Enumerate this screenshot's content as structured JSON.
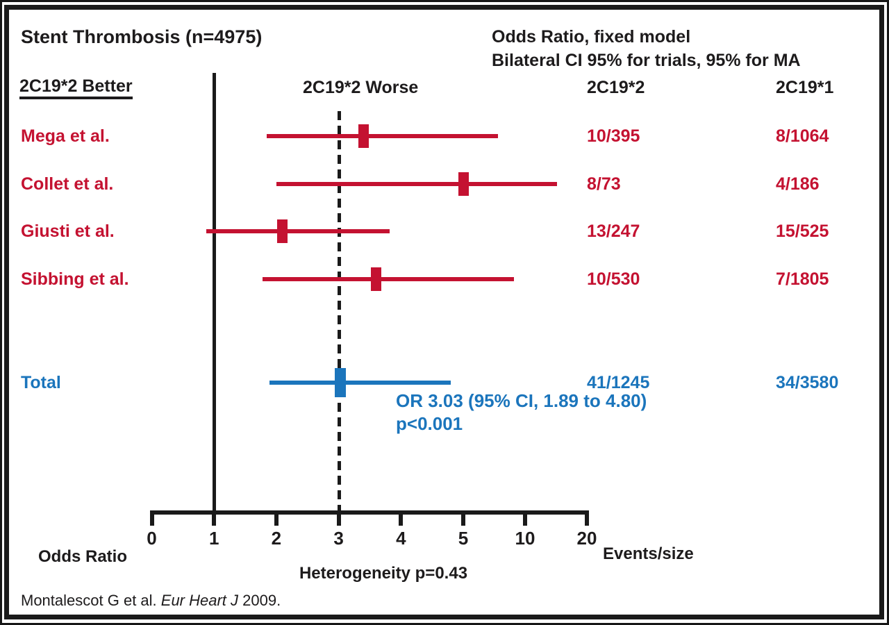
{
  "title": "Stent Thrombosis (n=4975)",
  "header": {
    "model_line1": "Odds Ratio, fixed model",
    "model_line2": "Bilateral CI 95% for trials, 95% for MA",
    "left_column": "2C19*2 Better",
    "plot_column": "2C19*2 Worse",
    "events_column_1": "2C19*2",
    "events_column_2": "2C19*1"
  },
  "chart_data": {
    "type": "forest",
    "title": "Stent Thrombosis (n=4975)",
    "xlabel": "Odds Ratio",
    "x_ticks": [
      0,
      1,
      2,
      3,
      4,
      5,
      10,
      20
    ],
    "x_scale_note": "linear 0-5, compressed equal-spacing for 10 and 20",
    "reference_line_or": 1,
    "dashed_line_or": 3.03,
    "studies": [
      {
        "label": "Mega et al.",
        "or": 3.4,
        "ci_low": 1.85,
        "ci_high": 7.8,
        "events_variant": "10/395",
        "events_wild": "8/1064"
      },
      {
        "label": "Collet et al.",
        "or": 5.0,
        "ci_low": 2.0,
        "ci_high": 15.2,
        "events_variant": "8/73",
        "events_wild": "4/186"
      },
      {
        "label": "Giusti et al.",
        "or": 2.1,
        "ci_low": 0.87,
        "ci_high": 3.82,
        "events_variant": "13/247",
        "events_wild": "15/525"
      },
      {
        "label": "Sibbing et al.",
        "or": 3.6,
        "ci_low": 1.78,
        "ci_high": 9.1,
        "events_variant": "10/530",
        "events_wild": "7/1805"
      }
    ],
    "total": {
      "label": "Total",
      "or": 3.03,
      "ci_low": 1.89,
      "ci_high": 4.8,
      "events_variant": "41/1245",
      "events_wild": "34/3580"
    },
    "summary_line1": "OR 3.03 (95% CI, 1.89 to 4.80)",
    "summary_line2": "p<0.001",
    "heterogeneity": "Heterogeneity p=0.43"
  },
  "footer": {
    "x_axis_label": "Odds Ratio",
    "events_label": "Events/size",
    "citation_prefix": "Montalescot G et al. ",
    "citation_italic": "Eur Heart J",
    "citation_suffix": " 2009."
  },
  "colors": {
    "study": "#C41231",
    "total": "#1B75BC",
    "ink": "#1d1b1c"
  }
}
